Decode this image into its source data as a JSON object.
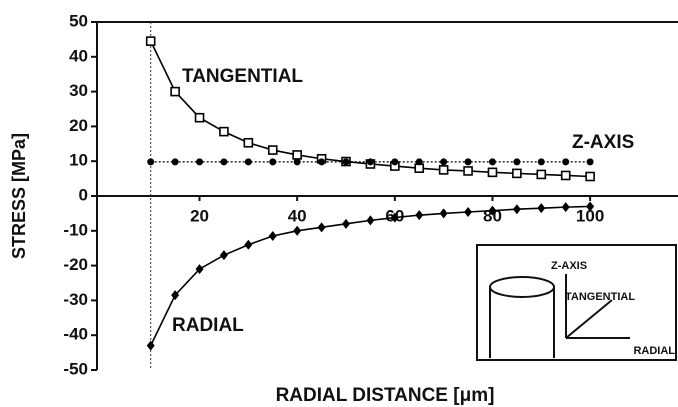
{
  "chart_data": {
    "type": "line",
    "x": [
      10,
      15,
      20,
      25,
      30,
      35,
      40,
      45,
      50,
      55,
      60,
      65,
      70,
      75,
      80,
      85,
      90,
      95,
      100
    ],
    "series": [
      {
        "name": "TANGENTIAL",
        "color": "#000000",
        "marker": "square",
        "linestyle": "solid",
        "values": [
          44.5,
          30,
          22.5,
          18.5,
          15.3,
          13.2,
          11.8,
          10.7,
          9.9,
          9.2,
          8.6,
          8.0,
          7.5,
          7.2,
          6.8,
          6.5,
          6.2,
          5.9,
          5.6
        ]
      },
      {
        "name": "Z-AXIS",
        "color": "#000000",
        "marker": "circle",
        "linestyle": "dotted",
        "values": [
          9.8,
          9.8,
          9.8,
          9.8,
          9.8,
          9.8,
          9.8,
          9.8,
          9.8,
          9.8,
          9.8,
          9.8,
          9.8,
          9.8,
          9.8,
          9.8,
          9.8,
          9.8,
          9.8
        ]
      },
      {
        "name": "RADIAL",
        "color": "#000000",
        "marker": "diamond",
        "linestyle": "solid",
        "values": [
          -43,
          -28.5,
          -21,
          -17,
          -14,
          -11.5,
          -10,
          -9,
          -8,
          -7,
          -6.2,
          -5.5,
          -5,
          -4.6,
          -4.2,
          -3.8,
          -3.5,
          -3.2,
          -3
        ]
      }
    ],
    "x_label": "RADIAL DISTANCE [μm]",
    "y_label": "STRESS [MPa]",
    "xlim": [
      -1,
      118
    ],
    "ylim": [
      -50,
      50
    ],
    "xticks": [
      20,
      40,
      60,
      80,
      100
    ],
    "yticks": [
      -50,
      -40,
      -30,
      -20,
      -10,
      0,
      10,
      20,
      30,
      40,
      50
    ],
    "vline": 10,
    "inset_labels": [
      "Z-AXIS",
      "TANGENTIAL",
      "RADIAL"
    ]
  }
}
